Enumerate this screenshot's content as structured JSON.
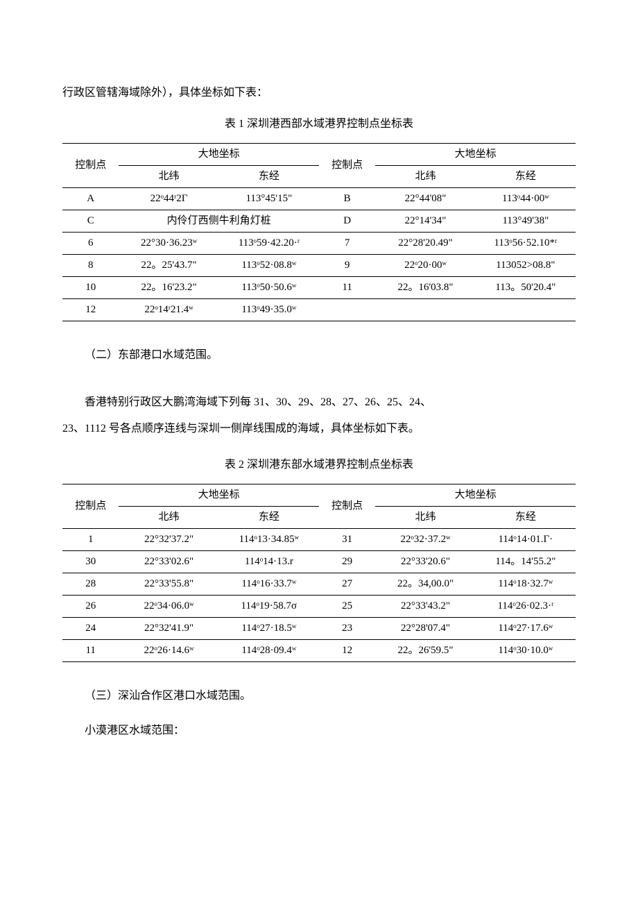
{
  "intro_line": "行政区管辖海域除外），具体坐标如下表：",
  "table1": {
    "caption": "表 1 深圳港西部水域港界控制点坐标表",
    "headers": {
      "ctrl": "控制点",
      "geo": "大地坐标",
      "lat": "北纬",
      "lon": "东经"
    },
    "rows": [
      {
        "p1": "A",
        "lat1": "22ᵒ44ʳ2Γ",
        "lon1": "113°45'15\"",
        "p2": "B",
        "lat2": "22°44'08\"",
        "lon2": "113ᵒ44·00ʷ"
      },
      {
        "p1": "C",
        "span1": "内伶仃西侧牛利角灯桩",
        "p2": "D",
        "lat2": "22°14'34\"",
        "lon2": "113°49'38\""
      },
      {
        "p1": "6",
        "lat1": "22°30·36.23ʷ",
        "lon1": "113ᵒ59·42.20·ʳ",
        "p2": "7",
        "lat2": "22°28'20.49\"",
        "lon2": "113ᵒ56·52.10*ʳ"
      },
      {
        "p1": "8",
        "lat1": "22。25'43.7\"",
        "lon1": "113ᵒ52·08.8ʷ",
        "p2": "9",
        "lat2": "22ᵒ20·00ʷ",
        "lon2": "113052>08.8\""
      },
      {
        "p1": "10",
        "lat1": "22。16'23.2\"",
        "lon1": "113ᵒ50·50.6ʷ",
        "p2": "11",
        "lat2": "22。16'03.8\"",
        "lon2": "113。50'20.4\""
      },
      {
        "p1": "12",
        "lat1": "22ᵒ14ʳ21.4ʷ",
        "lon1": "113ᵒ49·35.0ʷ",
        "p2": "",
        "lat2": "",
        "lon2": ""
      }
    ]
  },
  "section2_title": "（二）东部港口水域范围。",
  "section2_body1": "香港特别行政区大鹏湾海域下列每 31、30、29、28、27、26、25、24、",
  "section2_body2": "23、1112 号各点顺序连线与深圳一侧岸线围成的海域，具体坐标如下表。",
  "table2": {
    "caption": "表 2 深圳港东部水域港界控制点坐标表",
    "headers": {
      "ctrl": "控制点",
      "geo": "大地坐标",
      "lat": "北纬",
      "lon": "东经"
    },
    "rows": [
      {
        "p1": "1",
        "lat1": "22°32'37.2\"",
        "lon1": "114ᵒ13·34.85ʷ",
        "p2": "31",
        "lat2": "22ᵒ32·37.2ʷ",
        "lon2": "114ᵒ14·01.Γ·"
      },
      {
        "p1": "30",
        "lat1": "22°33'02.6\"",
        "lon1": "114ᵒ14·13.r",
        "p2": "29",
        "lat2": "22°33'20.6\"",
        "lon2": "114。14'55.2\""
      },
      {
        "p1": "28",
        "lat1": "22°33'55.8\"",
        "lon1": "114ᵒ16·33.7ʷ",
        "p2": "27",
        "lat2": "22。34,00.0\"",
        "lon2": "114ᵒ18·32.7ʷ"
      },
      {
        "p1": "26",
        "lat1": "22ᵒ34·06.0ʷ",
        "lon1": "114ᵒ19·58.7σ",
        "p2": "25",
        "lat2": "22°33'43.2\"",
        "lon2": "114ᵒ26·02.3·ʳ"
      },
      {
        "p1": "24",
        "lat1": "22°32'41.9\"",
        "lon1": "114ᵒ27·18.5ʷ",
        "p2": "23",
        "lat2": "22°28'07.4\"",
        "lon2": "114ᵒ27·17.6ʷ"
      },
      {
        "p1": "11",
        "lat1": "22ᵒ26·14.6ʷ",
        "lon1": "114ᵒ28·09.4ʷ",
        "p2": "12",
        "lat2": "22。26'59.5\"",
        "lon2": "114ᵒ30·10.0ʷ"
      }
    ]
  },
  "section3_title": "（三）深汕合作区港口水域范围。",
  "section3_sub": "小漠港区水域范围："
}
